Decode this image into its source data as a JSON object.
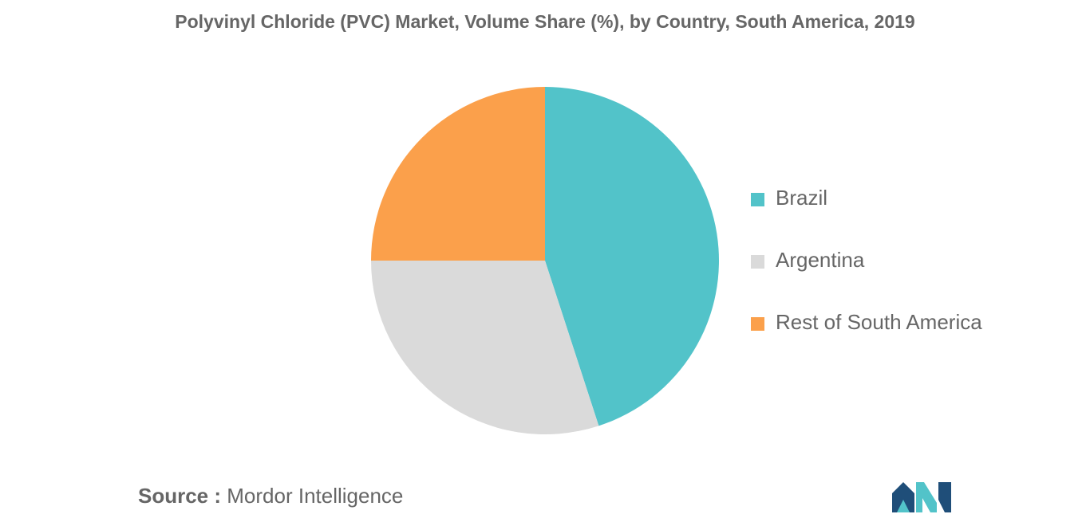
{
  "chart_data": {
    "type": "pie",
    "title": "Polyvinyl Chloride (PVC) Market, Volume Share (%), by Country, South America, 2019",
    "slices": [
      {
        "label": "Brazil",
        "value": 45,
        "color": "#52c3c9"
      },
      {
        "label": "Argentina",
        "value": 30,
        "color": "#dadada"
      },
      {
        "label": "Rest of South America",
        "value": 25,
        "color": "#fba04b"
      }
    ],
    "legend_position": "right"
  },
  "source": {
    "label": "Source :",
    "text": "Mordor Intelligence"
  },
  "logo": {
    "icon": "mordor-intelligence-logo-icon",
    "colors": [
      "#1f4e79",
      "#52c3c9"
    ]
  }
}
